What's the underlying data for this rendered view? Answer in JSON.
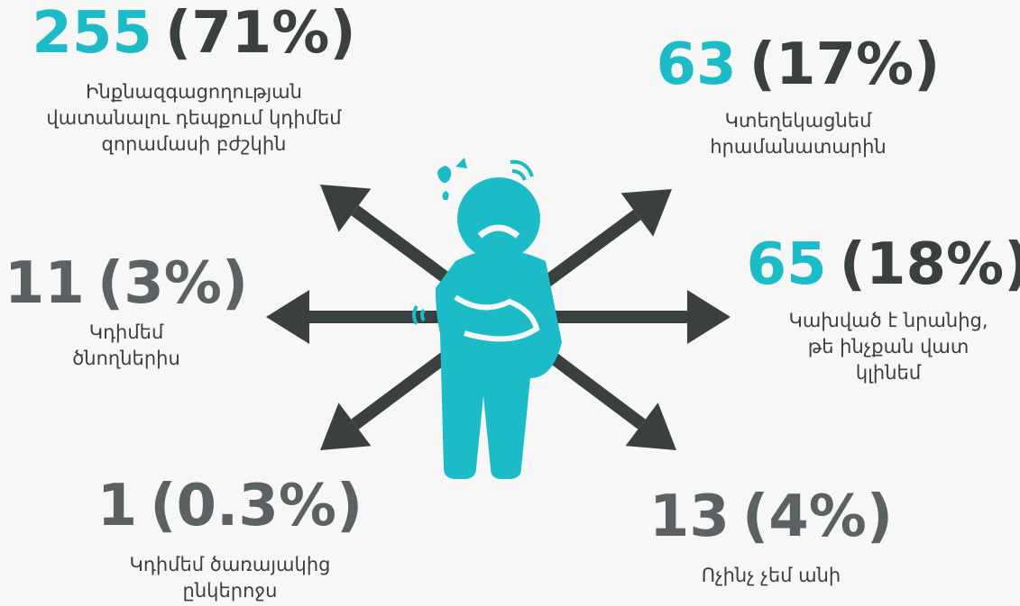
{
  "items": [
    {
      "count": 255,
      "percent": "(71%)",
      "lines": [
        "Ինքնազգացողության",
        "վատանալու դեպքում կդիմեմ",
        "զորամասի բժշկին"
      ]
    },
    {
      "count": 63,
      "percent": "(17%)",
      "lines": [
        "Կտեղեկացնեմ",
        "հրամանատարին"
      ]
    },
    {
      "count": 11,
      "percent": "(3%)",
      "lines": [
        "Կդիմեմ",
        "ծնողներիս"
      ]
    },
    {
      "count": 65,
      "percent": "(18%)",
      "lines": [
        "Կախված է նրանից,",
        "թե ինչքան վատ",
        "կլինեմ"
      ]
    },
    {
      "count": 1,
      "percent": "(0.3%)",
      "lines": [
        "Կդիմեմ ծառայակից",
        "ընկերոջս"
      ]
    },
    {
      "count": 13,
      "percent": "(4%)",
      "lines": [
        "Ոչինչ չեմ անի"
      ]
    }
  ]
}
